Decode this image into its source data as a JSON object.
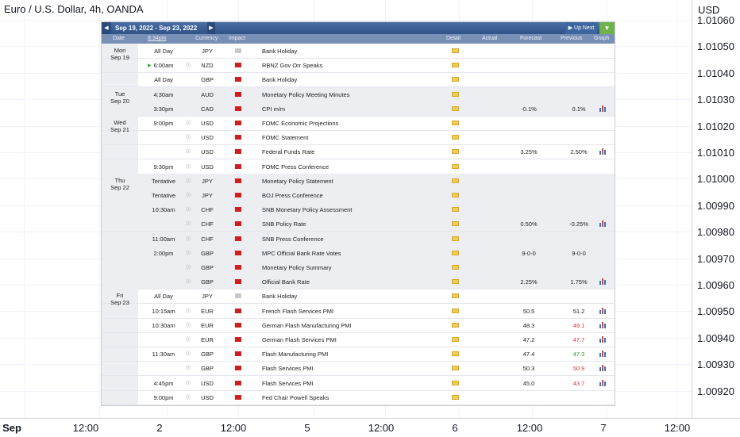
{
  "chart_title": "Euro / U.S. Dollar, 4h, OANDA",
  "currency": "USD",
  "price_ticks": [
    "1.01060",
    "1.01050",
    "1.01040",
    "1.01030",
    "1.01020",
    "1.01010",
    "1.01000",
    "1.00990",
    "1.00980",
    "1.00970",
    "1.00960",
    "1.00950",
    "1.00940",
    "1.00930",
    "1.00920"
  ],
  "time_ticks": [
    {
      "label": "Sep",
      "bold": true
    },
    {
      "label": "12:00"
    },
    {
      "label": "2"
    },
    {
      "label": "12:00"
    },
    {
      "label": "5"
    },
    {
      "label": "12:00"
    },
    {
      "label": "6"
    },
    {
      "label": "12:00"
    },
    {
      "label": "7"
    },
    {
      "label": "12:00"
    }
  ],
  "calendar": {
    "range": "Sep 19, 2022 - Sep 23, 2022",
    "prev_icon": "chevron-left-icon",
    "next_icon": "chevron-right-icon",
    "up_next_label": "Up Next",
    "filter_icon": "filter-icon",
    "headers": {
      "date": "Date",
      "time": "8:34pm",
      "currency": "Currency",
      "impact": "Impact",
      "detail": "Detail",
      "actual": "Actual",
      "forecast": "Forecast",
      "previous": "Previous",
      "graph": "Graph"
    },
    "days": [
      {
        "day": "Mon",
        "date": "Sep 19",
        "rows": [
          {
            "time": "All Day",
            "cur": "JPY",
            "impact": "none",
            "event": "Bank Holiday"
          },
          {
            "time": "6:00am",
            "cur": "NZD",
            "impact": "high",
            "event": "RBNZ Gov Orr Speaks",
            "speaker": true,
            "upnext": true
          },
          {
            "time": "All Day",
            "cur": "GBP",
            "impact": "high",
            "event": "Bank Holiday"
          }
        ]
      },
      {
        "day": "Tue",
        "date": "Sep 20",
        "rows": [
          {
            "time": "4:30am",
            "cur": "AUD",
            "impact": "high",
            "event": "Monetary Policy Meeting Minutes"
          },
          {
            "time": "3:30pm",
            "cur": "CAD",
            "impact": "high",
            "event": "CPI m/m",
            "forecast": "-0.1%",
            "previous": "0.1%",
            "graph": true
          }
        ]
      },
      {
        "day": "Wed",
        "date": "Sep 21",
        "rows": [
          {
            "time": "9:00pm",
            "cur": "USD",
            "impact": "high",
            "event": "FOMC Economic Projections",
            "speaker": true
          },
          {
            "time": "",
            "cur": "USD",
            "impact": "high",
            "event": "FOMC Statement",
            "speaker": true
          },
          {
            "time": "",
            "cur": "USD",
            "impact": "high",
            "event": "Federal Funds Rate",
            "speaker": true,
            "forecast": "3.25%",
            "previous": "2.50%",
            "graph": true
          },
          {
            "time": "9:30pm",
            "cur": "USD",
            "impact": "high",
            "event": "FOMC Press Conference",
            "speaker": true
          }
        ]
      },
      {
        "day": "Thu",
        "date": "Sep 22",
        "rows": [
          {
            "time": "Tentative",
            "cur": "JPY",
            "impact": "high",
            "event": "Monetary Policy Statement",
            "speaker": true
          },
          {
            "time": "Tentative",
            "cur": "JPY",
            "impact": "high",
            "event": "BOJ Press Conference",
            "speaker": true
          },
          {
            "time": "10:30am",
            "cur": "CHF",
            "impact": "high",
            "event": "SNB Monetary Policy Assessment",
            "speaker": true
          },
          {
            "time": "",
            "cur": "CHF",
            "impact": "high",
            "event": "SNB Policy Rate",
            "speaker": true,
            "forecast": "0.50%",
            "previous": "-0.25%",
            "graph": true
          },
          {
            "time": "11:00am",
            "cur": "CHF",
            "impact": "high",
            "event": "SNB Press Conference",
            "speaker": true
          },
          {
            "time": "2:00pm",
            "cur": "GBP",
            "impact": "high",
            "event": "MPC Official Bank Rate Votes",
            "speaker": true,
            "forecast": "9-0-0",
            "previous": "9-0-0"
          },
          {
            "time": "",
            "cur": "GBP",
            "impact": "high",
            "event": "Monetary Policy Summary",
            "speaker": true
          },
          {
            "time": "",
            "cur": "GBP",
            "impact": "high",
            "event": "Official Bank Rate",
            "speaker": true,
            "forecast": "2.25%",
            "previous": "1.75%",
            "graph": true
          }
        ]
      },
      {
        "day": "Fri",
        "date": "Sep 23",
        "rows": [
          {
            "time": "All Day",
            "cur": "JPY",
            "impact": "none",
            "event": "Bank Holiday"
          },
          {
            "time": "10:15am",
            "cur": "EUR",
            "impact": "high",
            "event": "French Flash Services PMI",
            "speaker": true,
            "forecast": "50.5",
            "previous": "51.2",
            "graph": true
          },
          {
            "time": "10:30am",
            "cur": "EUR",
            "impact": "high",
            "event": "German Flash Manufacturing PMI",
            "speaker": true,
            "forecast": "48.3",
            "previous": "49.1",
            "prev_color": "red",
            "graph": true
          },
          {
            "time": "",
            "cur": "EUR",
            "impact": "high",
            "event": "German Flash Services PMI",
            "speaker": true,
            "forecast": "47.2",
            "previous": "47.7",
            "prev_color": "red",
            "graph": true
          },
          {
            "time": "11:30am",
            "cur": "GBP",
            "impact": "high",
            "event": "Flash Manufacturing PMI",
            "speaker": true,
            "forecast": "47.4",
            "previous": "47.3",
            "prev_color": "green",
            "graph": true
          },
          {
            "time": "",
            "cur": "GBP",
            "impact": "high",
            "event": "Flash Services PMI",
            "speaker": true,
            "forecast": "50.3",
            "previous": "50.9",
            "prev_color": "red",
            "graph": true
          },
          {
            "time": "4:45pm",
            "cur": "USD",
            "impact": "high",
            "event": "Flash Services PMI",
            "speaker": true,
            "forecast": "45.0",
            "previous": "43.7",
            "prev_color": "red",
            "graph": true
          },
          {
            "time": "9:00pm",
            "cur": "USD",
            "impact": "high",
            "event": "Fed Chair Powell Speaks",
            "speaker": true
          }
        ]
      }
    ]
  }
}
